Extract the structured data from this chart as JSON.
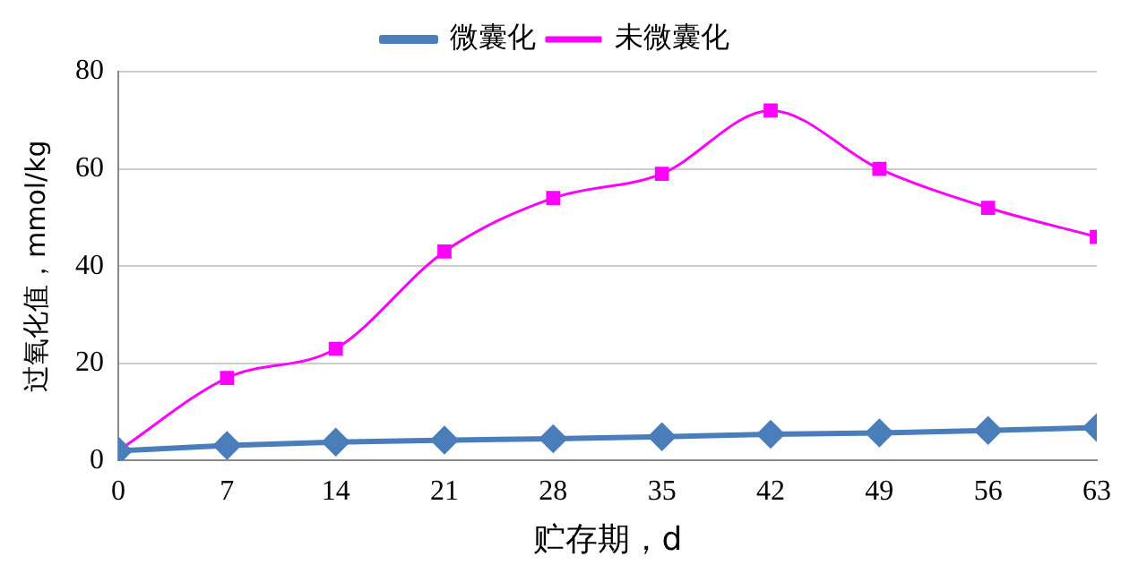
{
  "chart_data": {
    "type": "line",
    "xlabel": "贮存期，d",
    "ylabel": "过氧化值，mmol/kg",
    "x": [
      0,
      7,
      14,
      21,
      28,
      35,
      42,
      49,
      56,
      63
    ],
    "xlim": [
      0,
      63
    ],
    "xticks": [
      0,
      7,
      14,
      21,
      28,
      35,
      42,
      49,
      56,
      63
    ],
    "ylim": [
      0,
      80
    ],
    "yticks": [
      0,
      20,
      40,
      60,
      80
    ],
    "grid": "y",
    "legend": "top",
    "series": [
      {
        "name": "未微囊化",
        "color": "#ff00ff",
        "marker": "square",
        "values": [
          2,
          17,
          23,
          43,
          54,
          59,
          72,
          60,
          52,
          46
        ]
      },
      {
        "name": "微囊化",
        "color": "#4a7ebb",
        "marker": "diamond",
        "values": [
          2,
          3.1,
          3.8,
          4.2,
          4.5,
          4.9,
          5.4,
          5.7,
          6.2,
          6.8
        ]
      }
    ]
  }
}
